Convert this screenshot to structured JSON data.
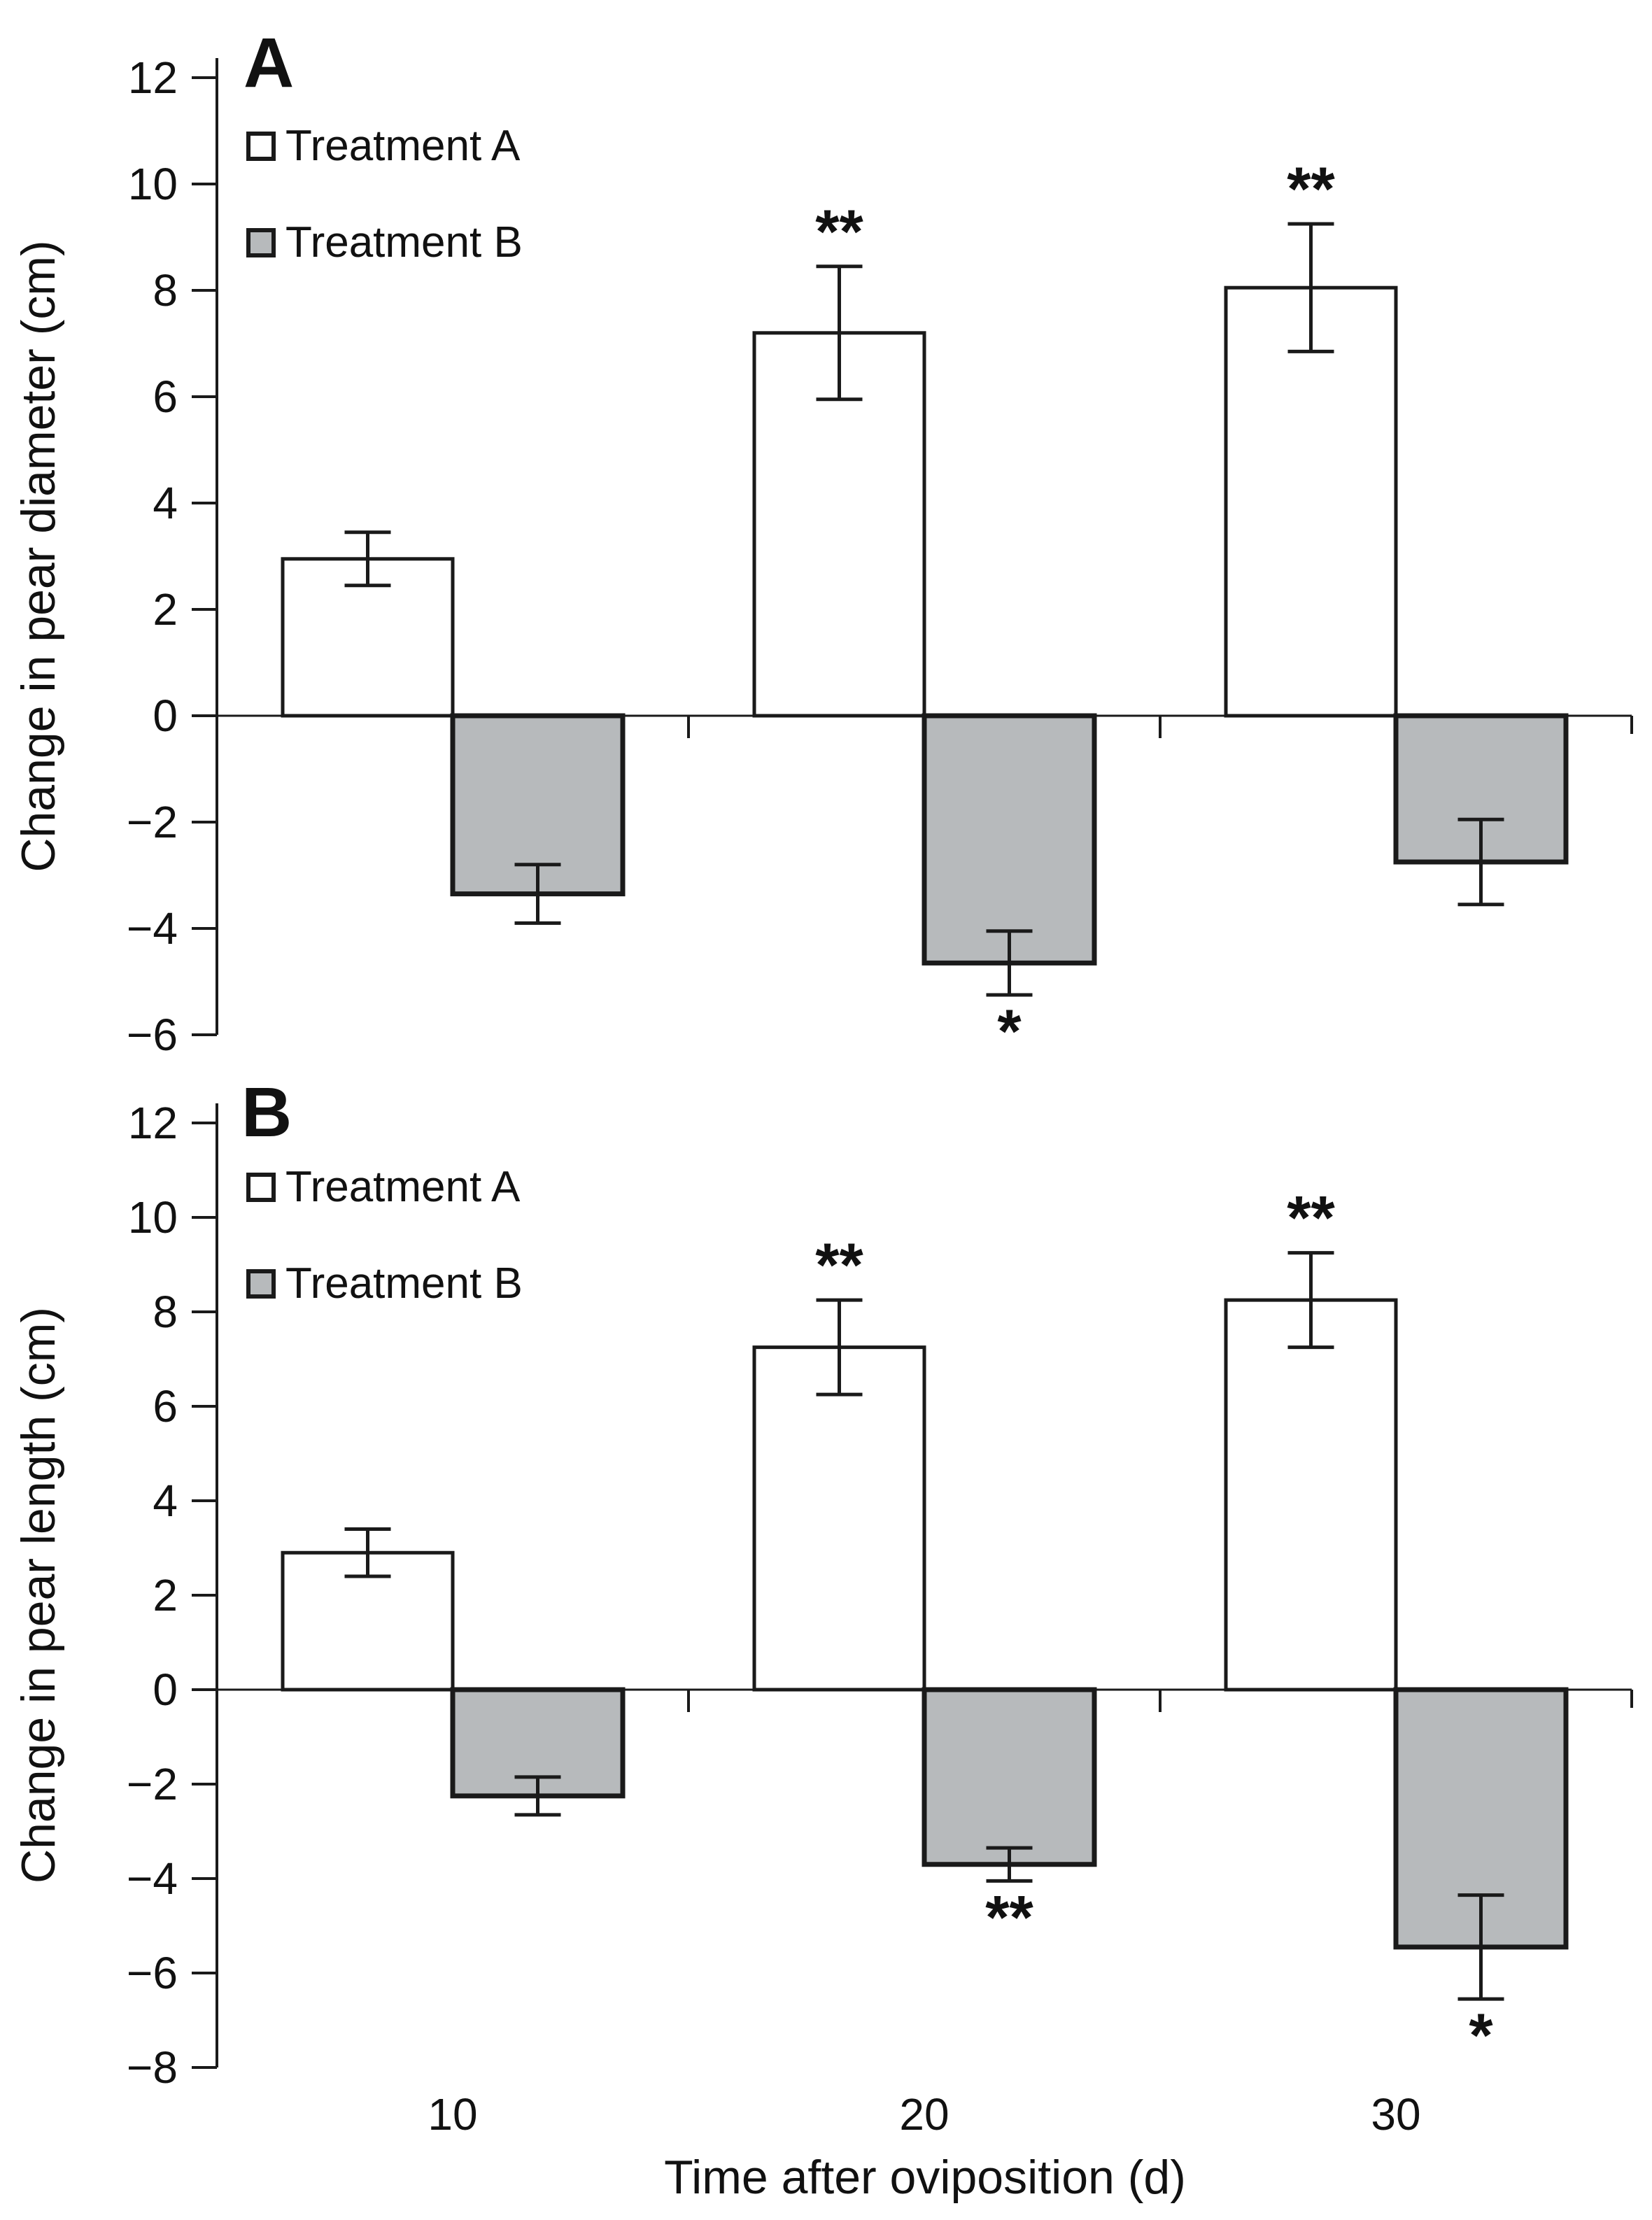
{
  "figure": {
    "background": "#ffffff"
  },
  "colors": {
    "ink": "#1a1a1a",
    "axis": "#2b2b2b",
    "bar_a_fill": "#ffffff",
    "bar_b_fill": "#b7babc"
  },
  "legend": {
    "items": [
      {
        "label": "Treatment A",
        "swatch": "white"
      },
      {
        "label": "Treatment B",
        "swatch": "gray"
      }
    ]
  },
  "x_axis": {
    "title": "Time after oviposition (d)",
    "tick_labels": [
      "10",
      "20",
      "30"
    ]
  },
  "chart_data": [
    {
      "type": "bar",
      "panel_label": "A",
      "title": "",
      "ylabel": "Change in pear diameter (cm)",
      "xlabel": "Time after oviposition (d)",
      "categories": [
        "10",
        "20",
        "30"
      ],
      "series": [
        {
          "name": "Treatment A",
          "fill": "white",
          "values": [
            2.95,
            7.2,
            8.05
          ],
          "errors": [
            0.5,
            1.25,
            1.2
          ],
          "significance": [
            "",
            "**",
            "**"
          ]
        },
        {
          "name": "Treatment B",
          "fill": "gray",
          "values": [
            -3.35,
            -4.65,
            -2.75
          ],
          "errors": [
            0.55,
            0.6,
            0.8
          ],
          "significance": [
            "",
            "*",
            ""
          ]
        }
      ],
      "ylim": [
        -6,
        12
      ],
      "ytick_step": 2,
      "ytick_labels": [
        "12",
        "10",
        "8",
        "6",
        "4",
        "2",
        "0",
        "−2",
        "−4",
        "−6"
      ],
      "grid": false,
      "legend_position": "top-left",
      "error_bar_style": "two-sided-caps"
    },
    {
      "type": "bar",
      "panel_label": "B",
      "title": "",
      "ylabel": "Change in pear length (cm)",
      "xlabel": "Time after oviposition (d)",
      "categories": [
        "10",
        "20",
        "30"
      ],
      "series": [
        {
          "name": "Treatment A",
          "fill": "white",
          "values": [
            2.9,
            7.25,
            8.25
          ],
          "errors": [
            0.5,
            1.0,
            1.0
          ],
          "significance": [
            "",
            "**",
            "**"
          ]
        },
        {
          "name": "Treatment B",
          "fill": "gray",
          "values": [
            -2.25,
            -3.7,
            -5.45
          ],
          "errors": [
            0.4,
            0.35,
            1.1
          ],
          "significance": [
            "",
            "**",
            "*"
          ]
        }
      ],
      "ylim": [
        -8,
        12
      ],
      "ytick_step": 2,
      "ytick_labels": [
        "12",
        "10",
        "8",
        "6",
        "4",
        "2",
        "0",
        "−2",
        "−4",
        "−6",
        "−8"
      ],
      "grid": false,
      "legend_position": "top-left",
      "error_bar_style": "two-sided-caps"
    }
  ]
}
